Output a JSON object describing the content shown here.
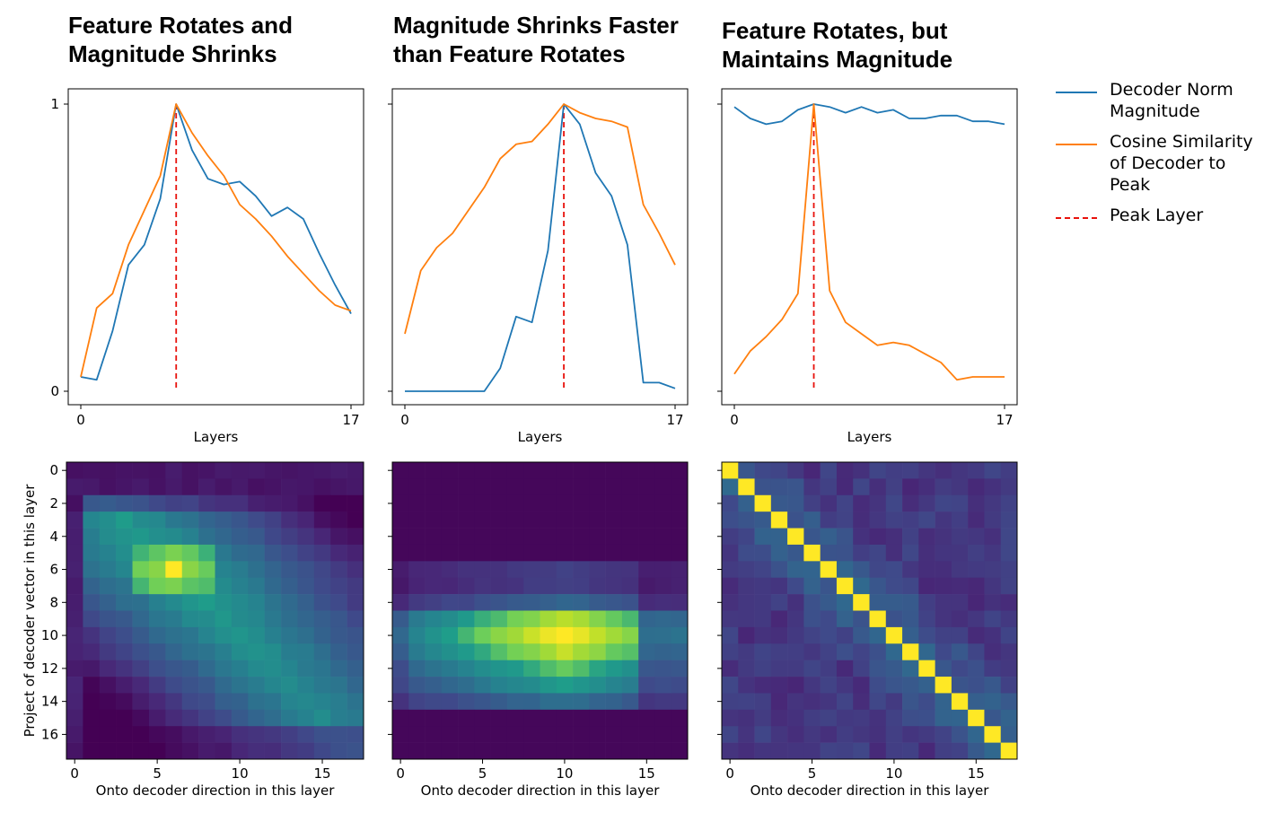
{
  "colors": {
    "norm": "#1f77b4",
    "cosine": "#ff7f0e",
    "peak": "#e8120c",
    "viridis": [
      "#440154",
      "#482777",
      "#3f4a8a",
      "#31678e",
      "#26838f",
      "#1f9d8a",
      "#6cce5a",
      "#b6de2b",
      "#fee825"
    ]
  },
  "titles": [
    "Feature Rotates and\nMagnitude Shrinks",
    "Magnitude Shrinks Faster\nthan Feature Rotates",
    "Feature Rotates, but\nMaintains Magnitude"
  ],
  "legend": [
    {
      "label": "Decoder Norm\nMagnitude",
      "style": "solid",
      "color_key": "norm"
    },
    {
      "label": "Cosine Similarity\nof Decoder to\nPeak",
      "style": "solid",
      "color_key": "cosine"
    },
    {
      "label": "Peak Layer",
      "style": "dashed",
      "color_key": "peak"
    }
  ],
  "chart_data": [
    {
      "type": "line",
      "title": "Feature Rotates and Magnitude Shrinks",
      "xlabel": "Layers",
      "xlim": [
        0,
        17
      ],
      "ylim": [
        0,
        1
      ],
      "xticks": [
        0,
        17
      ],
      "yticks": [
        0,
        1
      ],
      "peak_layer": 6,
      "series": [
        {
          "name": "Decoder Norm Magnitude",
          "x": [
            0,
            1,
            2,
            3,
            4,
            5,
            6,
            7,
            8,
            9,
            10,
            11,
            12,
            13,
            14,
            15,
            16,
            17
          ],
          "values": [
            0.05,
            0.04,
            0.21,
            0.44,
            0.51,
            0.67,
            1.0,
            0.84,
            0.74,
            0.72,
            0.73,
            0.68,
            0.61,
            0.64,
            0.6,
            0.48,
            0.37,
            0.27
          ]
        },
        {
          "name": "Cosine Similarity of Decoder to Peak",
          "x": [
            0,
            1,
            2,
            3,
            4,
            5,
            6,
            7,
            8,
            9,
            10,
            11,
            12,
            13,
            14,
            15,
            16,
            17
          ],
          "values": [
            0.05,
            0.29,
            0.34,
            0.51,
            0.63,
            0.75,
            1.0,
            0.9,
            0.82,
            0.75,
            0.65,
            0.6,
            0.54,
            0.47,
            0.41,
            0.35,
            0.3,
            0.28
          ]
        }
      ]
    },
    {
      "type": "line",
      "title": "Magnitude Shrinks Faster than Feature Rotates",
      "xlabel": "Layers",
      "xlim": [
        0,
        17
      ],
      "ylim": [
        0,
        1
      ],
      "xticks": [
        0,
        17
      ],
      "yticks": [],
      "peak_layer": 10,
      "series": [
        {
          "name": "Decoder Norm Magnitude",
          "x": [
            0,
            1,
            2,
            3,
            4,
            5,
            6,
            7,
            8,
            9,
            10,
            11,
            12,
            13,
            14,
            15,
            16,
            17
          ],
          "values": [
            0.0,
            0.0,
            0.0,
            0.0,
            0.0,
            0.0,
            0.08,
            0.26,
            0.24,
            0.49,
            1.0,
            0.93,
            0.76,
            0.68,
            0.51,
            0.03,
            0.03,
            0.01
          ]
        },
        {
          "name": "Cosine Similarity of Decoder to Peak",
          "x": [
            0,
            1,
            2,
            3,
            4,
            5,
            6,
            7,
            8,
            9,
            10,
            11,
            12,
            13,
            14,
            15,
            16,
            17
          ],
          "values": [
            0.2,
            0.42,
            0.5,
            0.55,
            0.63,
            0.71,
            0.81,
            0.86,
            0.87,
            0.93,
            1.0,
            0.97,
            0.95,
            0.94,
            0.92,
            0.65,
            0.55,
            0.44
          ]
        }
      ]
    },
    {
      "type": "line",
      "title": "Feature Rotates, but Maintains Magnitude",
      "xlabel": "Layers",
      "xlim": [
        0,
        17
      ],
      "ylim": [
        0,
        1
      ],
      "xticks": [
        0,
        17
      ],
      "yticks": [],
      "peak_layer": 5,
      "series": [
        {
          "name": "Decoder Norm Magnitude",
          "x": [
            0,
            1,
            2,
            3,
            4,
            5,
            6,
            7,
            8,
            9,
            10,
            11,
            12,
            13,
            14,
            15,
            16,
            17
          ],
          "values": [
            0.99,
            0.95,
            0.93,
            0.94,
            0.98,
            1.0,
            0.99,
            0.97,
            0.99,
            0.97,
            0.98,
            0.95,
            0.95,
            0.96,
            0.96,
            0.94,
            0.94,
            0.93
          ]
        },
        {
          "name": "Cosine Similarity of Decoder to Peak",
          "x": [
            0,
            1,
            2,
            3,
            4,
            5,
            6,
            7,
            8,
            9,
            10,
            11,
            12,
            13,
            14,
            15,
            16,
            17
          ],
          "values": [
            0.06,
            0.14,
            0.19,
            0.25,
            0.34,
            1.0,
            0.35,
            0.24,
            0.2,
            0.16,
            0.17,
            0.16,
            0.13,
            0.1,
            0.04,
            0.05,
            0.05,
            0.05
          ]
        }
      ]
    },
    {
      "type": "heatmap",
      "xlabel": "Onto decoder direction in this layer",
      "ylabel": "Project of decoder vector in this layer",
      "xticks": [
        0,
        5,
        10,
        15
      ],
      "yticks": [
        0,
        2,
        4,
        6,
        8,
        10,
        12,
        14,
        16
      ],
      "pattern": "spread_peak",
      "peak_index": 6,
      "vrange": [
        0,
        1
      ]
    },
    {
      "type": "heatmap",
      "xlabel": "Onto decoder direction in this layer",
      "xticks": [
        0,
        5,
        10,
        15
      ],
      "yticks": [],
      "pattern": "band",
      "peak_index": 10,
      "vrange": [
        0,
        1
      ]
    },
    {
      "type": "heatmap",
      "xlabel": "Onto decoder direction in this layer",
      "xticks": [
        0,
        5,
        10,
        15
      ],
      "yticks": [],
      "pattern": "diagonal",
      "peak_index": 5,
      "vrange": [
        0,
        1
      ]
    }
  ]
}
